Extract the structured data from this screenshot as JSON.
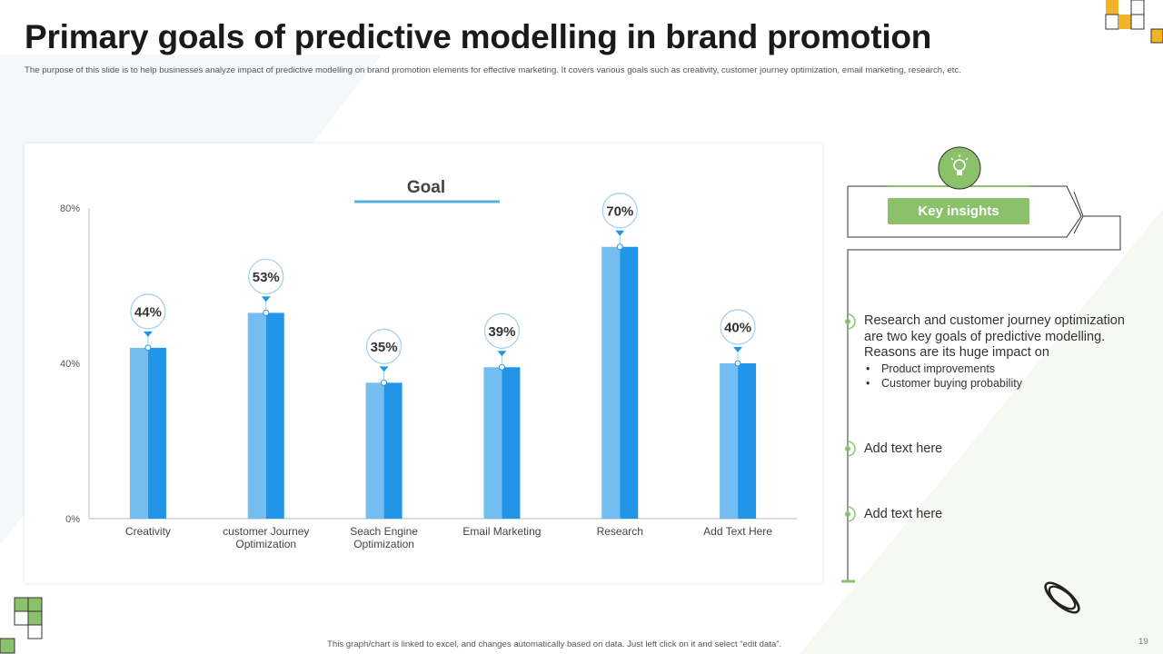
{
  "title": "Primary goals of predictive modelling in brand promotion",
  "subtitle": "The purpose of this slide is to help businesses analyze impact of predictive modelling  on brand promotion elements for effective marketing. It covers various goals such as creativity, customer journey optimization, email  marketing,  research, etc.",
  "chart_data": {
    "type": "bar",
    "title": "Goal",
    "categories": [
      "Creativity",
      "customer Journey\nOptimization",
      "Seach Engine\nOptimization",
      "Email Marketing",
      "Research",
      "Add Text Here"
    ],
    "values": [
      44,
      53,
      35,
      39,
      70,
      40
    ],
    "value_labels": [
      "44%",
      "53%",
      "35%",
      "39%",
      "70%",
      "40%"
    ],
    "ylim": [
      0,
      80
    ],
    "yticks": [
      0,
      40,
      80
    ],
    "ytick_labels": [
      "0%",
      "40%",
      "80%"
    ],
    "xlabel": "",
    "ylabel": "",
    "colors": {
      "bar_light": "#74bdf0",
      "bar_dark": "#2196e8",
      "bubble_border": "#9fd0f0",
      "title_underline": "#5aaee0"
    }
  },
  "insights": {
    "header": "Key insights",
    "main_text": "Research and customer journey optimization are two key goals of predictive modelling. Reasons are its huge impact on",
    "bullets": [
      "Product improvements",
      "Customer buying probability"
    ],
    "item2": "Add text here",
    "item3": "Add text here"
  },
  "footer_note": "This graph/chart is linked to excel, and changes automatically based on data. Just left click on it and select “edit data”.",
  "page_number": "19",
  "icons": {
    "insight": "lightbulb-icon",
    "decor": "rings-icon"
  },
  "accent_colors": {
    "green": "#8bc16a",
    "gold": "#f0b429"
  }
}
